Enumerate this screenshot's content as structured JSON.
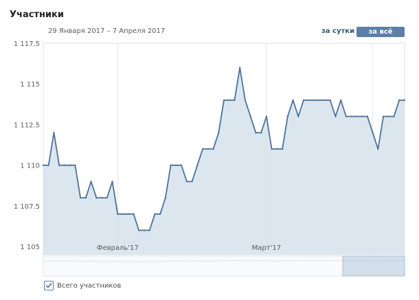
{
  "header": {
    "title": "Участники",
    "date_range": "29 Января 2017 – 7 Апреля 2017",
    "day_button": "за сутки",
    "all_time_button": "за всё время"
  },
  "legend": {
    "label": "Всего участников",
    "checked": true
  },
  "colors": {
    "line": "#4d7198",
    "fill": "#d5e2ec",
    "accent": "#5b7fa6",
    "link": "#2b587a"
  },
  "chart_data": {
    "type": "line",
    "title": "",
    "xlabel": "",
    "ylabel": "",
    "ylim": [
      1104.5,
      1117.5
    ],
    "yticks": [
      1105,
      1107.5,
      1110,
      1112.5,
      1115,
      1117.5
    ],
    "ytick_labels": [
      "1 105",
      "1 107.5",
      "1 110",
      "1 112.5",
      "1 115",
      "1 117.5"
    ],
    "xticks": [
      {
        "label": "Февраль'17",
        "index": 14
      },
      {
        "label": "Март'17",
        "index": 42
      }
    ],
    "grid": "vertical",
    "series": [
      {
        "name": "Всего участников",
        "values": [
          1110,
          1110,
          1112,
          1110,
          1110,
          1110,
          1110,
          1108,
          1108,
          1109,
          1108,
          1108,
          1108,
          1109,
          1107,
          1107,
          1107,
          1107,
          1106,
          1106,
          1106,
          1107,
          1107,
          1108,
          1110,
          1110,
          1110,
          1109,
          1109,
          1110,
          1111,
          1111,
          1111,
          1112,
          1114,
          1114,
          1114,
          1116,
          1114,
          1113,
          1112,
          1112,
          1113,
          1111,
          1111,
          1111,
          1113,
          1114,
          1113,
          1114,
          1114,
          1114,
          1114,
          1114,
          1114,
          1113,
          1114,
          1113,
          1113,
          1113,
          1113,
          1113,
          1112,
          1111,
          1113,
          1113,
          1113,
          1114,
          1114
        ]
      }
    ]
  }
}
